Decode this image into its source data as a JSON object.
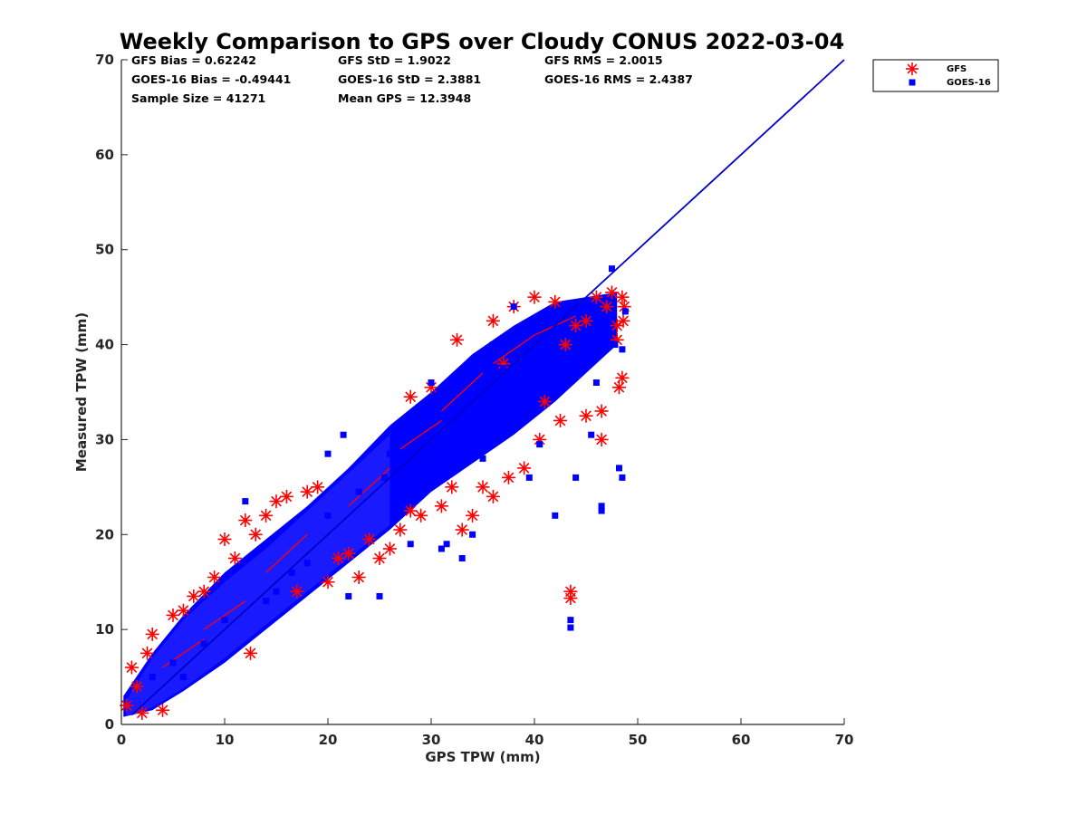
{
  "chart_data": {
    "type": "scatter",
    "title": "Weekly Comparison to GPS over Cloudy CONUS 2022-03-04",
    "xlabel": "GPS TPW (mm)",
    "ylabel": "Measured TPW (mm)",
    "xlim": [
      0,
      70
    ],
    "ylim": [
      0,
      70
    ],
    "xticks": [
      "0",
      "10",
      "20",
      "30",
      "40",
      "50",
      "60",
      "70"
    ],
    "yticks": [
      "0",
      "10",
      "20",
      "30",
      "40",
      "50",
      "60",
      "70"
    ],
    "grid": false,
    "legend_position": "outside top-right",
    "stats": [
      "GFS Bias = 0.62242",
      "GFS StD = 1.9022",
      "GFS RMS = 2.0015",
      "GOES-16 Bias = -0.49441",
      "GOES-16 StD = 2.3881",
      "GOES-16 RMS = 2.4387",
      "Sample Size = 41271",
      "Mean GPS = 12.3948"
    ],
    "reference_line": {
      "x": [
        1,
        70
      ],
      "y": [
        1,
        70
      ],
      "color": "#0000cc"
    },
    "series": [
      {
        "name": "GFS",
        "marker": "asterisk",
        "color": "#ff0000",
        "points": [
          [
            0.5,
            2.0
          ],
          [
            1.0,
            6.0
          ],
          [
            1.5,
            4.0
          ],
          [
            2.0,
            1.2
          ],
          [
            2.5,
            7.5
          ],
          [
            3.0,
            9.5
          ],
          [
            4.0,
            1.5
          ],
          [
            5.0,
            11.5
          ],
          [
            6.0,
            12.0
          ],
          [
            7.0,
            13.5
          ],
          [
            8.0,
            14.0
          ],
          [
            9.0,
            15.5
          ],
          [
            10.0,
            19.5
          ],
          [
            11.0,
            17.5
          ],
          [
            12.0,
            21.5
          ],
          [
            12.5,
            7.5
          ],
          [
            13.0,
            20.0
          ],
          [
            14.0,
            22.0
          ],
          [
            15.0,
            23.5
          ],
          [
            16.0,
            24.0
          ],
          [
            17.0,
            14.0
          ],
          [
            18.0,
            24.5
          ],
          [
            19.0,
            25.0
          ],
          [
            20.0,
            15.0
          ],
          [
            21.0,
            17.5
          ],
          [
            22.0,
            18.0
          ],
          [
            23.0,
            15.5
          ],
          [
            24.0,
            19.5
          ],
          [
            25.0,
            17.5
          ],
          [
            26.0,
            18.5
          ],
          [
            27.0,
            20.5
          ],
          [
            28.0,
            22.5
          ],
          [
            28.0,
            34.5
          ],
          [
            29.0,
            22.0
          ],
          [
            30.0,
            35.5
          ],
          [
            31.0,
            23.0
          ],
          [
            32.0,
            25.0
          ],
          [
            32.5,
            40.5
          ],
          [
            33.0,
            20.5
          ],
          [
            34.0,
            22.0
          ],
          [
            35.0,
            25.0
          ],
          [
            36.0,
            24.0
          ],
          [
            36.0,
            42.5
          ],
          [
            37.0,
            38.0
          ],
          [
            37.5,
            26.0
          ],
          [
            38.0,
            44.0
          ],
          [
            39.0,
            27.0
          ],
          [
            40.0,
            45.0
          ],
          [
            40.5,
            30.0
          ],
          [
            41.0,
            34.0
          ],
          [
            42.0,
            44.5
          ],
          [
            42.5,
            32.0
          ],
          [
            43.0,
            40.0
          ],
          [
            43.5,
            14.0
          ],
          [
            43.5,
            13.3
          ],
          [
            44.0,
            42.0
          ],
          [
            45.0,
            42.5
          ],
          [
            45.0,
            32.5
          ],
          [
            46.0,
            45.0
          ],
          [
            46.5,
            30.0
          ],
          [
            46.5,
            33.0
          ],
          [
            47.0,
            44.0
          ],
          [
            47.5,
            45.5
          ],
          [
            48.0,
            42.0
          ],
          [
            48.0,
            40.5
          ],
          [
            48.2,
            35.5
          ],
          [
            48.5,
            36.5
          ],
          [
            48.5,
            45.0
          ],
          [
            48.6,
            42.5
          ],
          [
            48.7,
            44.0
          ]
        ]
      },
      {
        "name": "GOES-16",
        "marker": "square",
        "color": "#0000ff",
        "points": [
          [
            3.0,
            5.0
          ],
          [
            5.0,
            6.5
          ],
          [
            10.0,
            11.0
          ],
          [
            12.0,
            23.5
          ],
          [
            15.0,
            14.0
          ],
          [
            18.0,
            17.0
          ],
          [
            20.0,
            28.5
          ],
          [
            21.5,
            30.5
          ],
          [
            22.0,
            13.5
          ],
          [
            25.0,
            13.5
          ],
          [
            25.5,
            26.0
          ],
          [
            28.0,
            19.0
          ],
          [
            29.5,
            25.0
          ],
          [
            30.0,
            36.0
          ],
          [
            31.0,
            18.5
          ],
          [
            31.5,
            19.0
          ],
          [
            33.0,
            17.5
          ],
          [
            34.0,
            20.0
          ],
          [
            35.0,
            28.0
          ],
          [
            36.0,
            40.0
          ],
          [
            38.0,
            44.0
          ],
          [
            39.5,
            26.0
          ],
          [
            40.5,
            29.5
          ],
          [
            42.0,
            22.0
          ],
          [
            43.5,
            11.0
          ],
          [
            43.5,
            10.2
          ],
          [
            44.0,
            26.0
          ],
          [
            45.5,
            30.5
          ],
          [
            46.0,
            36.0
          ],
          [
            46.5,
            23.0
          ],
          [
            46.5,
            22.5
          ],
          [
            47.0,
            42.0
          ],
          [
            47.5,
            48.0
          ],
          [
            47.8,
            40.0
          ],
          [
            48.2,
            27.0
          ],
          [
            48.5,
            26.0
          ],
          [
            48.5,
            39.5
          ],
          [
            48.8,
            43.5
          ],
          [
            20.0,
            22.0
          ],
          [
            23.0,
            24.5
          ],
          [
            26.0,
            28.5
          ],
          [
            14.0,
            13.0
          ],
          [
            8.0,
            8.5
          ],
          [
            6.0,
            5.0
          ],
          [
            16.5,
            16.0
          ],
          [
            27.0,
            30.0
          ],
          [
            33.0,
            34.0
          ],
          [
            37.0,
            37.5
          ]
        ]
      }
    ]
  }
}
